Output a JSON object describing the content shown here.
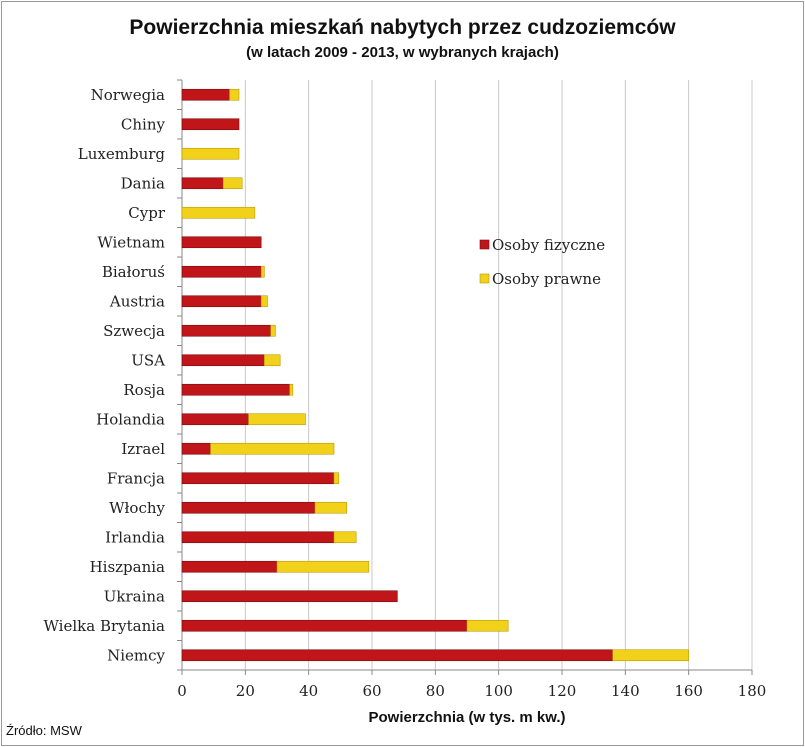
{
  "header": {
    "title": "Powierzchnia mieszkań nabytych przez cudzoziemców",
    "subtitle": "(w latach 2009 - 2013, w wybranych krajach)"
  },
  "footer": {
    "source": "Źródło: MSW"
  },
  "colors": {
    "fizyczne": "#c0161a",
    "prawne": "#f2d11a",
    "grid": "#c8c8c8",
    "axis": "#888888"
  },
  "chart_data": {
    "type": "bar",
    "orientation": "horizontal",
    "stacked": true,
    "title": "Powierzchnia mieszkań nabytych przez cudzoziemców",
    "subtitle": "(w latach 2009 - 2013, w wybranych krajach)",
    "xlabel": "Powierzchnia (w tys. m kw.)",
    "xlim": [
      0,
      180
    ],
    "xticks": [
      0,
      20,
      40,
      60,
      80,
      100,
      120,
      140,
      160,
      180
    ],
    "grid": true,
    "legend_position": "right",
    "categories": [
      "Norwegia",
      "Chiny",
      "Luxemburg",
      "Dania",
      "Cypr",
      "Wietnam",
      "Białoruś",
      "Austria",
      "Szwecja",
      "USA",
      "Rosja",
      "Holandia",
      "Izrael",
      "Francja",
      "Włochy",
      "Irlandia",
      "Hiszpania",
      "Ukraina",
      "Wielka Brytania",
      "Niemcy"
    ],
    "series": [
      {
        "name": "Osoby fizyczne",
        "color": "#c0161a",
        "values": [
          15,
          18,
          0,
          13,
          0,
          25,
          25,
          25,
          28,
          26,
          34,
          21,
          9,
          48,
          42,
          48,
          30,
          68,
          90,
          136
        ]
      },
      {
        "name": "Osoby prawne",
        "color": "#f2d11a",
        "values": [
          3,
          0,
          18,
          6,
          23,
          0,
          1,
          2,
          1.5,
          5,
          1,
          18,
          39,
          1.5,
          10,
          7,
          29,
          0,
          13,
          24
        ]
      }
    ]
  }
}
